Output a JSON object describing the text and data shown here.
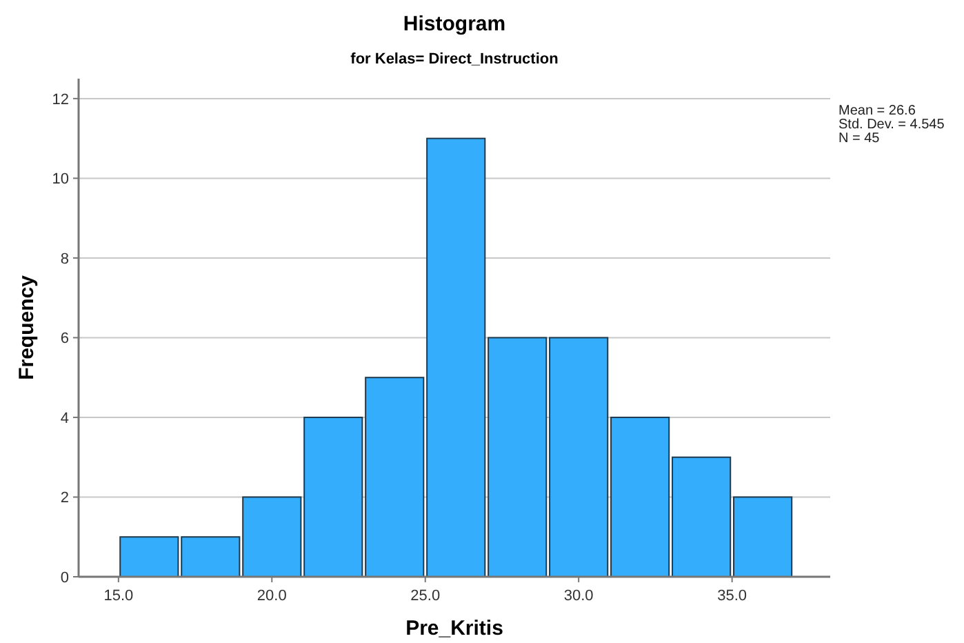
{
  "chart_data": {
    "type": "histogram",
    "title": "Histogram",
    "subtitle": "for Kelas= Direct_Instruction",
    "xlabel": "Pre_Kritis",
    "ylabel": "Frequency",
    "bins": [
      15,
      17,
      19,
      21,
      23,
      25,
      27,
      29,
      31,
      33,
      35,
      37
    ],
    "values": [
      1,
      1,
      2,
      4,
      5,
      11,
      6,
      6,
      4,
      3,
      2
    ],
    "color": "#33adfc",
    "xlim": [
      13.7,
      38.2
    ],
    "xticks": [
      {
        "value": 15,
        "label": "15.0"
      },
      {
        "value": 20,
        "label": "20.0"
      },
      {
        "value": 25,
        "label": "25.0"
      },
      {
        "value": 30,
        "label": "30.0"
      },
      {
        "value": 35,
        "label": "35.0"
      }
    ],
    "ylim": [
      0,
      12.5
    ],
    "yticks": [
      0,
      2,
      4,
      6,
      8,
      10,
      12
    ],
    "grid": "y",
    "annotations": [
      "Mean = 26.6",
      "Std. Dev. = 4.545",
      "N = 45"
    ]
  }
}
